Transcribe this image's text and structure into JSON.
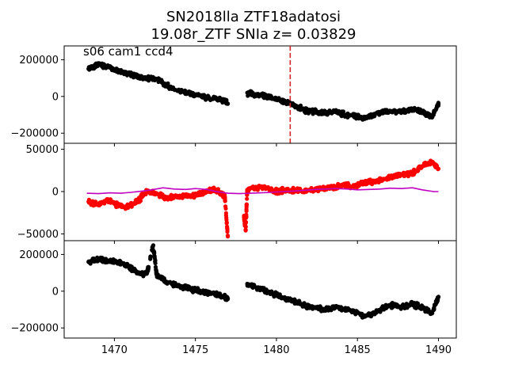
{
  "chart_data": {
    "type": "scatter",
    "title": "SN2018lla  ZTF18adatosi",
    "subtitle": "19.08r_ZTF SNIa z= 0.03829",
    "annotation": "s06 cam1 ccd4",
    "xlim": [
      1466.9,
      1491.1
    ],
    "x_ticks": [
      1470,
      1475,
      1480,
      1485,
      1490
    ],
    "x_tick_labels": [
      "1470",
      "1475",
      "1480",
      "1485",
      "1490"
    ],
    "marker_line_x": 1480.85,
    "marker_line_color": "#d62728",
    "panels": [
      {
        "name": "top",
        "ylim": [
          -255000,
          275000
        ],
        "y_ticks": [
          -200000,
          0,
          200000
        ],
        "y_tick_labels": [
          "−200000",
          "0",
          "200000"
        ],
        "point_color": "#000000",
        "series": [
          {
            "x": [
              1468.4,
              1469.0,
              1469.6,
              1470.2,
              1470.8,
              1471.4,
              1472.0,
              1472.6,
              1473.2,
              1473.8,
              1474.4,
              1475.0,
              1475.6,
              1476.2,
              1476.8,
              1477.0,
              1478.2,
              1478.8,
              1479.4,
              1480.0,
              1480.6,
              1481.2,
              1481.8,
              1482.4,
              1483.0,
              1483.6,
              1484.2,
              1484.8,
              1485.4,
              1486.0,
              1486.6,
              1487.2,
              1487.8,
              1488.4,
              1489.0,
              1489.6,
              1490.0
            ],
            "y": [
              150000,
              175000,
              160000,
              140000,
              125000,
              110000,
              100000,
              95000,
              60000,
              35000,
              25000,
              10000,
              -5000,
              -10000,
              -25000,
              -40000,
              20000,
              10000,
              0,
              -15000,
              -30000,
              -50000,
              -75000,
              -85000,
              -90000,
              -80000,
              -100000,
              -105000,
              -120000,
              -100000,
              -85000,
              -80000,
              -80000,
              -70000,
              -85000,
              -110000,
              -40000
            ]
          }
        ]
      },
      {
        "name": "middle",
        "ylim": [
          -58000,
          57000
        ],
        "y_ticks": [
          -50000,
          0,
          50000
        ],
        "y_tick_labels": [
          "−50000",
          "0",
          "50000"
        ],
        "point_color": "#ff0000",
        "line_color": "#c000c0",
        "series": [
          {
            "x": [
              1468.4,
              1469.0,
              1469.6,
              1470.2,
              1470.8,
              1471.4,
              1472.0,
              1472.6,
              1473.2,
              1473.8,
              1474.4,
              1475.0,
              1475.6,
              1476.2,
              1476.8,
              1477.0,
              1478.0,
              1478.1,
              1478.2,
              1478.8,
              1479.4,
              1480.0,
              1480.6,
              1481.2,
              1481.8,
              1482.4,
              1483.0,
              1483.6,
              1484.2,
              1484.8,
              1485.4,
              1486.0,
              1486.6,
              1487.2,
              1487.8,
              1488.4,
              1489.0,
              1489.6,
              1490.0
            ],
            "y": [
              -12000,
              -15000,
              -10000,
              -16000,
              -18000,
              -12000,
              0,
              -2000,
              -8000,
              -6000,
              -5000,
              -4000,
              -1000,
              2000,
              -4000,
              -53000,
              -30000,
              -45000,
              2000,
              5000,
              4000,
              0,
              2000,
              1000,
              0,
              3000,
              4000,
              5000,
              8000,
              7000,
              10000,
              12000,
              15000,
              18000,
              20000,
              22000,
              30000,
              35000,
              27000
            ]
          }
        ],
        "model": {
          "x": [
            1468.3,
            1469.0,
            1469.7,
            1470.4,
            1471.0,
            1471.7,
            1472.3,
            1473.0,
            1473.7,
            1474.4,
            1475.0,
            1475.7,
            1476.3,
            1477.0,
            1477.7,
            1478.4,
            1479.0,
            1479.7,
            1480.4,
            1481.0,
            1481.7,
            1482.4,
            1483.0,
            1483.7,
            1484.4,
            1485.0,
            1485.7,
            1486.4,
            1487.0,
            1487.7,
            1488.4,
            1489.0,
            1489.7,
            1490.0
          ],
          "y": [
            -2000,
            -2500,
            -1500,
            -2000,
            -1000,
            500,
            2000,
            4500,
            3000,
            2500,
            3500,
            2500,
            0,
            -2000,
            -2500,
            -2000,
            -1500,
            -1000,
            0,
            500,
            1500,
            2500,
            3000,
            3500,
            3000,
            2000,
            2500,
            3000,
            4000,
            3500,
            4500,
            2000,
            0,
            0
          ]
        }
      },
      {
        "name": "bottom",
        "ylim": [
          -255000,
          275000
        ],
        "y_ticks": [
          -200000,
          0,
          200000
        ],
        "y_tick_labels": [
          "−200000",
          "0",
          "200000"
        ],
        "point_color": "#000000",
        "series": [
          {
            "x": [
              1468.4,
              1469.0,
              1469.6,
              1470.2,
              1470.8,
              1471.4,
              1472.0,
              1472.4,
              1472.6,
              1473.2,
              1473.8,
              1474.4,
              1475.0,
              1475.6,
              1476.2,
              1476.8,
              1477.0,
              1478.2,
              1478.8,
              1479.4,
              1480.0,
              1480.6,
              1481.2,
              1481.8,
              1482.4,
              1483.0,
              1483.6,
              1484.2,
              1484.8,
              1485.4,
              1486.0,
              1486.6,
              1487.2,
              1487.8,
              1488.4,
              1489.0,
              1489.6,
              1490.0
            ],
            "y": [
              160000,
              170000,
              165000,
              160000,
              140000,
              100000,
              95000,
              250000,
              90000,
              50000,
              30000,
              20000,
              5000,
              -5000,
              -15000,
              -30000,
              -40000,
              40000,
              20000,
              0,
              -20000,
              -40000,
              -60000,
              -80000,
              -90000,
              -100000,
              -85000,
              -100000,
              -110000,
              -140000,
              -120000,
              -90000,
              -75000,
              -85000,
              -70000,
              -90000,
              -120000,
              -30000
            ]
          }
        ]
      }
    ]
  }
}
